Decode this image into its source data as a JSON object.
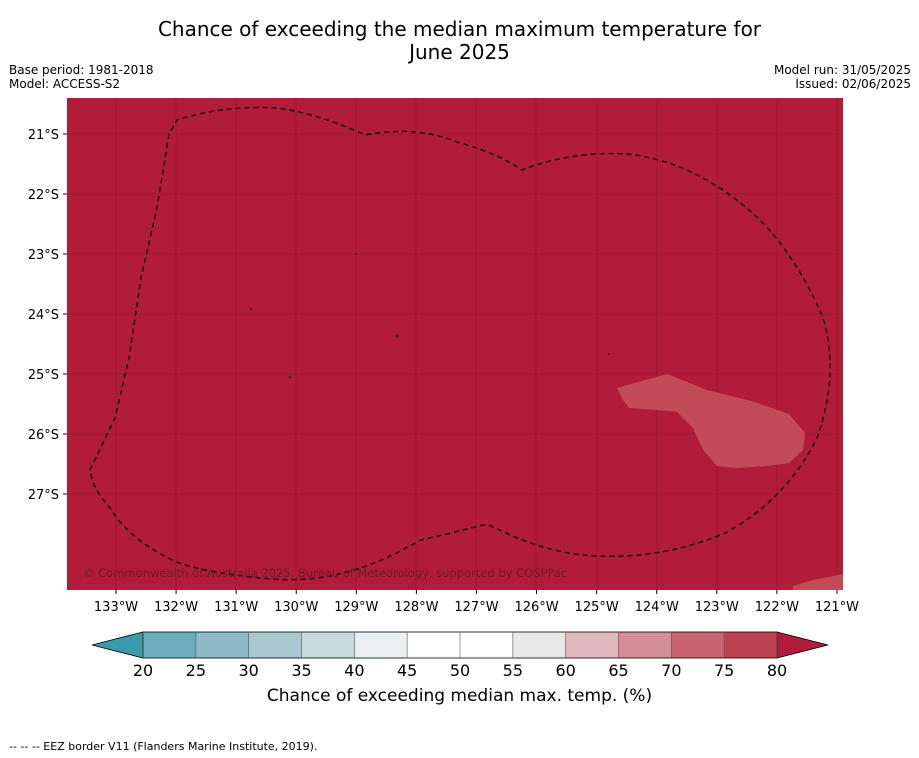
{
  "title_line1": "Chance of exceeding the median maximum temperature for",
  "title_line2": "June 2025",
  "base_period": "Base period: 1981-2018",
  "model": "Model: ACCESS-S2",
  "model_run": "Model run: 31/05/2025",
  "issued": "Issued: 02/06/2025",
  "copyright": "© Commonwealth of Australia 2025, Bureau of Meteorology, supported by COSPPac",
  "lat_labels": [
    "21°S",
    "22°S",
    "23°S",
    "24°S",
    "25°S",
    "26°S",
    "27°S"
  ],
  "lon_labels": [
    "133°W",
    "132°W",
    "131°W",
    "130°W",
    "129°W",
    "128°W",
    "127°W",
    "126°W",
    "125°W",
    "124°W",
    "123°W",
    "122°W",
    "121°W"
  ],
  "colorbar": {
    "ticks": [
      "20",
      "25",
      "30",
      "35",
      "40",
      "45",
      "50",
      "55",
      "60",
      "65",
      "70",
      "75",
      "80"
    ],
    "colors": [
      "#6eadbd",
      "#8dbac6",
      "#a9c8cf",
      "#c9dade",
      "#eaf0f2",
      "#ffffff",
      "#ffffff",
      "#e8e8e9",
      "#e0b9be",
      "#d58e97",
      "#c96570",
      "#bf4452"
    ],
    "low_color": "#3d9aab",
    "high_color": "#b01c3a",
    "label": "Chance of exceeding median max. temp. (%)"
  },
  "map_colors": {
    "main": "#b01c3a",
    "patch": "#c24b58"
  },
  "footnote": "-- -- -- EEZ border V11 (Flanders Marine Institute, 2019)."
}
